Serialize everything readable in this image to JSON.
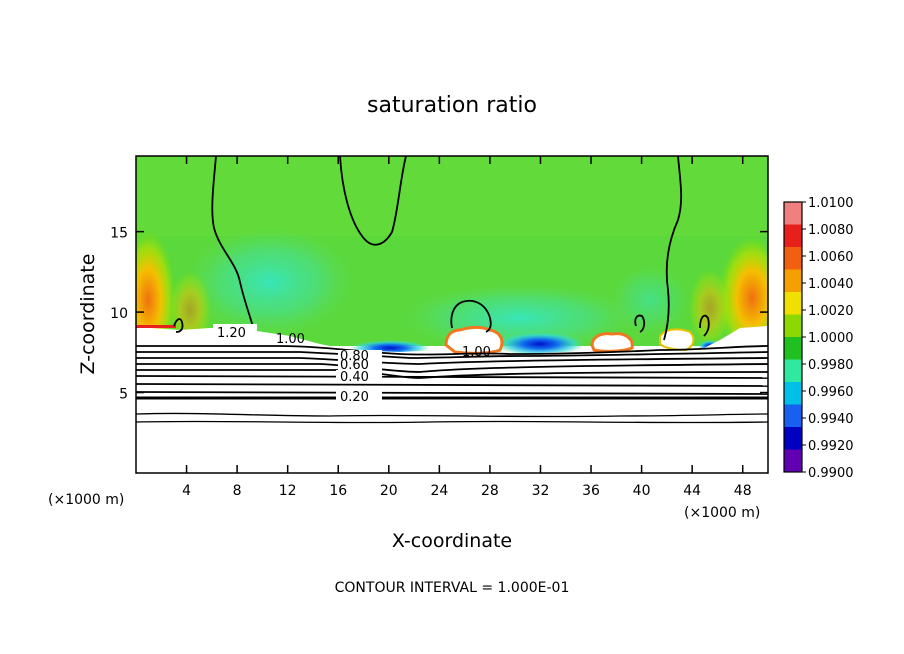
{
  "chart_data": {
    "type": "heatmap",
    "title": "saturation ratio",
    "xlabel": "X-coordinate",
    "ylabel": "Z-coordinate",
    "x_unit_label_left": "(×1000 m)",
    "x_unit_label_right": "(×1000 m)",
    "x_ticks": [
      4,
      8,
      12,
      16,
      20,
      24,
      28,
      32,
      36,
      40,
      44,
      48
    ],
    "y_ticks": [
      5,
      10,
      15
    ],
    "xlim": [
      0,
      50
    ],
    "ylim": [
      0,
      19.7
    ],
    "colorbar": {
      "ticks": [
        "1.0100",
        "1.0080",
        "1.0060",
        "1.0040",
        "1.0020",
        "1.0000",
        "0.9980",
        "0.9960",
        "0.9940",
        "0.9920",
        "0.9900"
      ],
      "colors": [
        "#f08080",
        "#e8201c",
        "#f06010",
        "#f4a000",
        "#f0e000",
        "#8cd800",
        "#20c020",
        "#30e8a0",
        "#00c0e8",
        "#1860f0",
        "#0000c0",
        "#6000b0"
      ]
    },
    "contour_labels": [
      "1.20",
      "1.00",
      "1.00",
      "0.80",
      "0.60",
      "0.40",
      "0.20"
    ],
    "footer": "CONTOUR INTERVAL = 1.000E-01"
  }
}
